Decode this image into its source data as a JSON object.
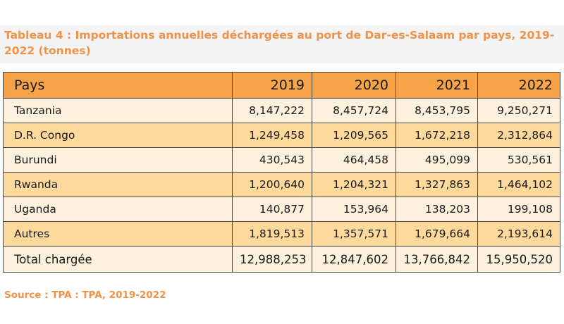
{
  "title": "Tableau 4 : Importations annuelles déchargées au port de Dar-es-Salaam par pays, 2019-2022 (tonnes)",
  "table": {
    "headers": [
      "Pays",
      "2019",
      "2020",
      "2021",
      "2022"
    ],
    "rows": [
      {
        "country": "Tanzania",
        "values": [
          "8,147,222",
          "8,457,724",
          "8,453,795",
          "9,250,271"
        ]
      },
      {
        "country": "D.R. Congo",
        "values": [
          "1,249,458",
          "1,209,565",
          "1,672,218",
          "2,312,864"
        ]
      },
      {
        "country": "Burundi",
        "values": [
          "430,543",
          "464,458",
          "495,099",
          "530,561"
        ]
      },
      {
        "country": "Rwanda",
        "values": [
          "1,200,640",
          "1,204,321",
          "1,327,863",
          "1,464,102"
        ]
      },
      {
        "country": "Uganda",
        "values": [
          "140,877",
          "153,964",
          "138,203",
          "199,108"
        ]
      },
      {
        "country": "Autres",
        "values": [
          "1,819,513",
          "1,357,571",
          "1,679,664",
          "2,193,614"
        ]
      }
    ],
    "total": {
      "country": "Total chargée",
      "values": [
        "12,988,253",
        "12,847,602",
        "13,766,842",
        "15,950,520"
      ]
    }
  },
  "source": "Source : TPA : TPA, 2019-2022",
  "colors": {
    "accent": "#f0924a",
    "header_bg": "#f6a447",
    "row_light": "#fdf0dc",
    "row_mid": "#fdd99b"
  }
}
